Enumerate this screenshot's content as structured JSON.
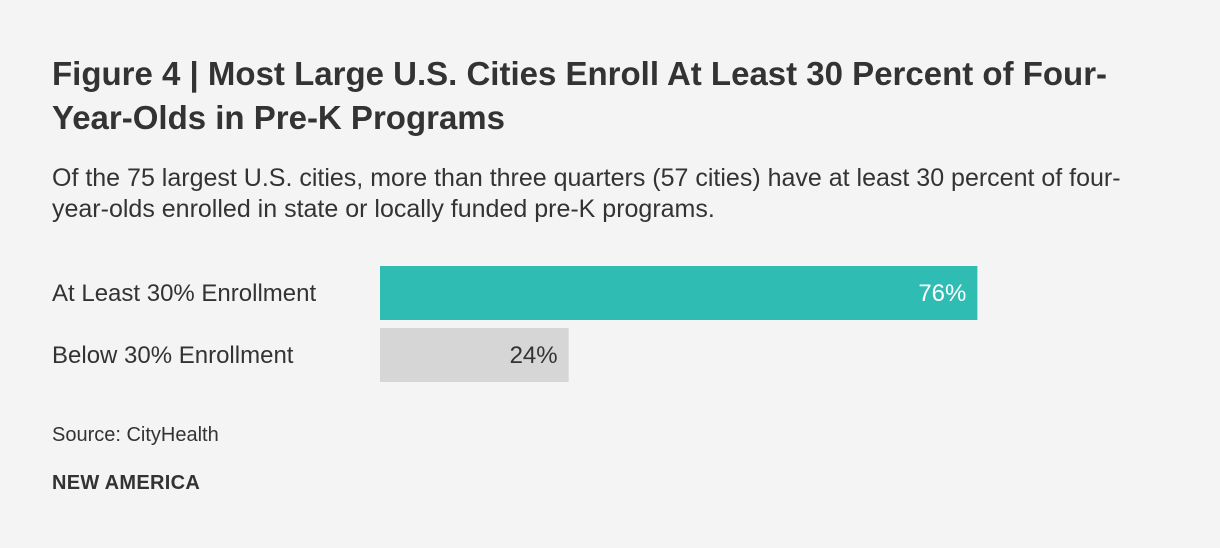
{
  "header": {
    "title": "Figure 4 | Most Large U.S. Cities Enroll At Least 30 Percent of Four-Year-Olds in Pre-K Programs",
    "subtitle": "Of the 75 largest U.S. cities, more than three quarters (57 cities) have at least 30 percent of four-year-olds enrolled in state or locally funded pre-K programs."
  },
  "footer": {
    "source": "Source: CityHealth",
    "brand": "NEW AMERICA"
  },
  "chart_data": {
    "type": "bar",
    "orientation": "horizontal",
    "categories": [
      "At Least 30% Enrollment",
      "Below 30% Enrollment"
    ],
    "values": [
      76,
      24
    ],
    "data_labels": [
      "76%",
      "24%"
    ],
    "colors": [
      "#2ebcb3",
      "#d6d6d6"
    ],
    "label_colors": [
      "#ffffff",
      "#333333"
    ],
    "xlim": [
      0,
      100
    ],
    "grid": false,
    "legend": "none"
  }
}
